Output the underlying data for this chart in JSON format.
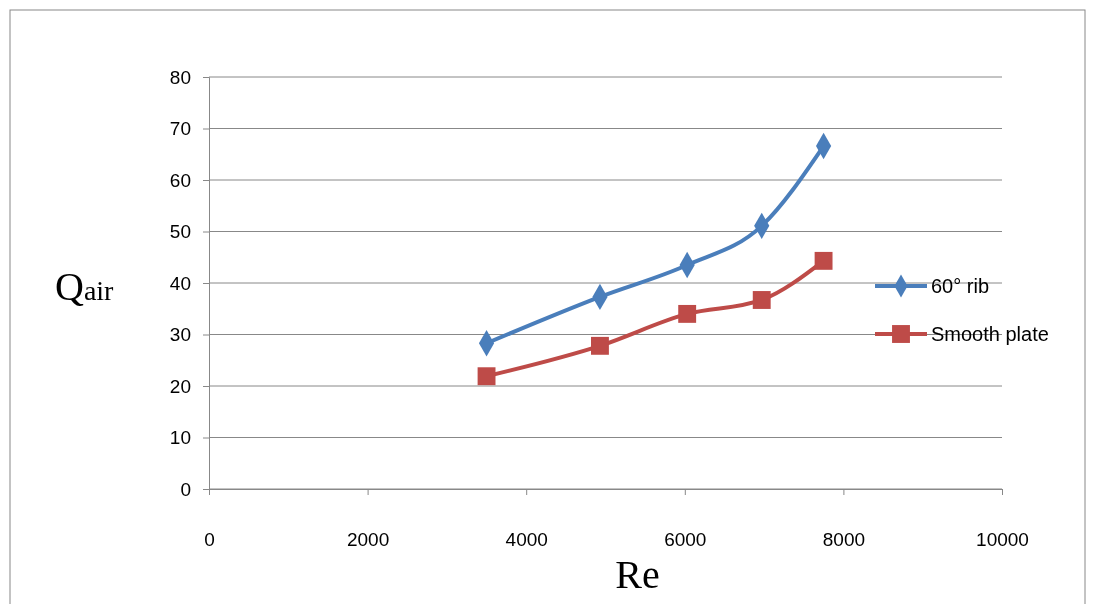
{
  "chart_data": {
    "type": "line",
    "xlabel": "Re",
    "ylabel": "Q$_{air}$",
    "xlim": [
      0,
      10000
    ],
    "xticks": [
      0,
      2000,
      4000,
      6000,
      8000,
      10000
    ],
    "ylim": [
      0,
      80
    ],
    "yticks": [
      0,
      10,
      20,
      30,
      40,
      50,
      60,
      70,
      80
    ],
    "grid": "y",
    "legend": "right",
    "line_style": "solid",
    "series": [
      {
        "name": "60° rib",
        "color": "#4a7ebb",
        "marker": "diamond",
        "x": [
          3500,
          4930,
          6030,
          6970,
          7750
        ],
        "values": [
          28.3,
          37.3,
          43.5,
          51.1,
          66.6
        ]
      },
      {
        "name": "Smooth plate",
        "color": "#be4b48",
        "marker": "square",
        "x": [
          3500,
          4930,
          6030,
          6970,
          7750
        ],
        "values": [
          21.9,
          27.8,
          34.0,
          36.7,
          44.3
        ]
      }
    ]
  }
}
